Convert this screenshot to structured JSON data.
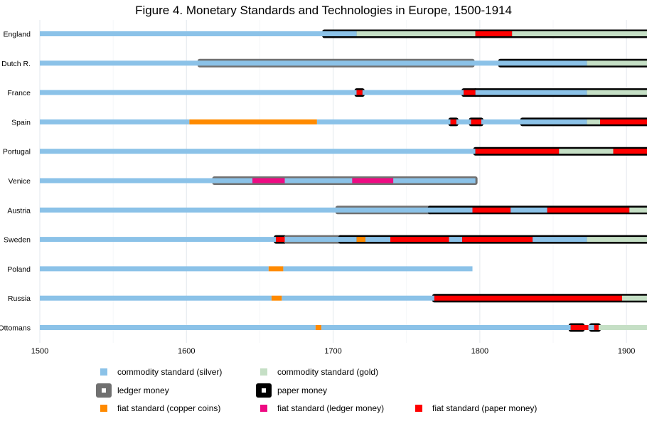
{
  "chart_data": {
    "type": "timeline",
    "title": "Figure 4. Monetary Standards and Technologies in Europe, 1500-1914",
    "x_range": [
      1500,
      1914
    ],
    "x_ticks": [
      1500,
      1600,
      1700,
      1800,
      1900
    ],
    "grid": "vertical",
    "legend_position": "bottom",
    "colors": {
      "silver": "#8bc2e8",
      "gold": "#c5dfc5",
      "copper": "#ff8a00",
      "fiat_ledger": "#ee0a82",
      "fiat_paper": "#ff0000",
      "ledger": "#707070",
      "paper": "#000000"
    },
    "legend": [
      {
        "key": "silver",
        "label": "commodity standard (silver)"
      },
      {
        "key": "gold",
        "label": "commodity standard (gold)"
      },
      {
        "key": "ledger",
        "label": "ledger money"
      },
      {
        "key": "paper",
        "label": "paper money"
      },
      {
        "key": "copper",
        "label": "fiat standard (copper coins)"
      },
      {
        "key": "fiat_ledger",
        "label": "fiat standard (ledger money)"
      },
      {
        "key": "fiat_paper",
        "label": "fiat standard (paper money)"
      }
    ],
    "rows": [
      {
        "name": "England",
        "standards": [
          [
            1500,
            1716,
            "silver"
          ],
          [
            1716,
            1797,
            "gold"
          ],
          [
            1797,
            1822,
            "fiat_paper"
          ],
          [
            1822,
            1914,
            "gold"
          ]
        ],
        "technologies": [
          [
            1694,
            1914,
            "paper"
          ]
        ]
      },
      {
        "name": "Dutch R.",
        "standards": [
          [
            1500,
            1873,
            "silver"
          ],
          [
            1873,
            1914,
            "gold"
          ]
        ],
        "technologies": [
          [
            1609,
            1795,
            "ledger"
          ],
          [
            1814,
            1914,
            "paper"
          ]
        ]
      },
      {
        "name": "France",
        "standards": [
          [
            1500,
            1716,
            "silver"
          ],
          [
            1716,
            1720,
            "fiat_paper"
          ],
          [
            1720,
            1789,
            "silver"
          ],
          [
            1789,
            1797,
            "fiat_paper"
          ],
          [
            1797,
            1873,
            "silver"
          ],
          [
            1873,
            1914,
            "gold"
          ]
        ],
        "technologies": [
          [
            1716,
            1720,
            "paper"
          ],
          [
            1789,
            1797,
            "paper"
          ],
          [
            1797,
            1914,
            "paper"
          ]
        ]
      },
      {
        "name": "Spain",
        "standards": [
          [
            1500,
            1602,
            "silver"
          ],
          [
            1602,
            1689,
            "copper"
          ],
          [
            1689,
            1780,
            "silver"
          ],
          [
            1780,
            1784,
            "fiat_paper"
          ],
          [
            1784,
            1794,
            "silver"
          ],
          [
            1794,
            1801,
            "fiat_paper"
          ],
          [
            1801,
            1873,
            "silver"
          ],
          [
            1873,
            1882,
            "gold"
          ],
          [
            1882,
            1914,
            "fiat_paper"
          ]
        ],
        "technologies": [
          [
            1780,
            1784,
            "paper"
          ],
          [
            1794,
            1801,
            "paper"
          ],
          [
            1829,
            1914,
            "paper"
          ]
        ]
      },
      {
        "name": "Portugal",
        "standards": [
          [
            1500,
            1797,
            "silver"
          ],
          [
            1797,
            1854,
            "fiat_paper"
          ],
          [
            1854,
            1891,
            "gold"
          ],
          [
            1891,
            1914,
            "fiat_paper"
          ]
        ],
        "technologies": [
          [
            1797,
            1914,
            "paper"
          ]
        ]
      },
      {
        "name": "Venice",
        "standards": [
          [
            1500,
            1645,
            "silver"
          ],
          [
            1645,
            1667,
            "fiat_ledger"
          ],
          [
            1667,
            1713,
            "silver"
          ],
          [
            1713,
            1741,
            "fiat_ledger"
          ],
          [
            1741,
            1797,
            "silver"
          ]
        ],
        "technologies": [
          [
            1619,
            1797,
            "ledger"
          ]
        ]
      },
      {
        "name": "Austria",
        "standards": [
          [
            1500,
            1795,
            "silver"
          ],
          [
            1795,
            1821,
            "fiat_paper"
          ],
          [
            1821,
            1846,
            "silver"
          ],
          [
            1846,
            1902,
            "fiat_paper"
          ],
          [
            1902,
            1914,
            "gold"
          ]
        ],
        "technologies": [
          [
            1703,
            1766,
            "ledger"
          ],
          [
            1766,
            1914,
            "paper"
          ]
        ]
      },
      {
        "name": "Sweden",
        "standards": [
          [
            1500,
            1661,
            "silver"
          ],
          [
            1661,
            1667,
            "fiat_paper"
          ],
          [
            1667,
            1716,
            "silver"
          ],
          [
            1716,
            1722,
            "copper"
          ],
          [
            1722,
            1739,
            "silver"
          ],
          [
            1739,
            1779,
            "fiat_paper"
          ],
          [
            1779,
            1788,
            "silver"
          ],
          [
            1788,
            1836,
            "fiat_paper"
          ],
          [
            1836,
            1873,
            "silver"
          ],
          [
            1873,
            1914,
            "gold"
          ]
        ],
        "technologies": [
          [
            1661,
            1667,
            "paper"
          ],
          [
            1668,
            1705,
            "ledger"
          ],
          [
            1705,
            1914,
            "paper"
          ]
        ]
      },
      {
        "name": "Poland",
        "standards": [
          [
            1500,
            1656,
            "silver"
          ],
          [
            1656,
            1666,
            "copper"
          ],
          [
            1666,
            1795,
            "silver"
          ]
        ],
        "technologies": []
      },
      {
        "name": "Russia",
        "standards": [
          [
            1500,
            1658,
            "silver"
          ],
          [
            1658,
            1665,
            "copper"
          ],
          [
            1665,
            1769,
            "silver"
          ],
          [
            1769,
            1897,
            "fiat_paper"
          ],
          [
            1897,
            1914,
            "gold"
          ]
        ],
        "technologies": [
          [
            1769,
            1914,
            "paper"
          ]
        ]
      },
      {
        "name": "Ottomans",
        "standards": [
          [
            1500,
            1688,
            "silver"
          ],
          [
            1688,
            1692,
            "copper"
          ],
          [
            1692,
            1862,
            "silver"
          ],
          [
            1862,
            1874,
            "fiat_paper"
          ],
          [
            1874,
            1878,
            "silver"
          ],
          [
            1878,
            1881,
            "fiat_paper"
          ],
          [
            1881,
            1914,
            "gold"
          ]
        ],
        "technologies": [
          [
            1862,
            1870,
            "paper"
          ],
          [
            1876,
            1881,
            "paper"
          ]
        ]
      }
    ]
  }
}
